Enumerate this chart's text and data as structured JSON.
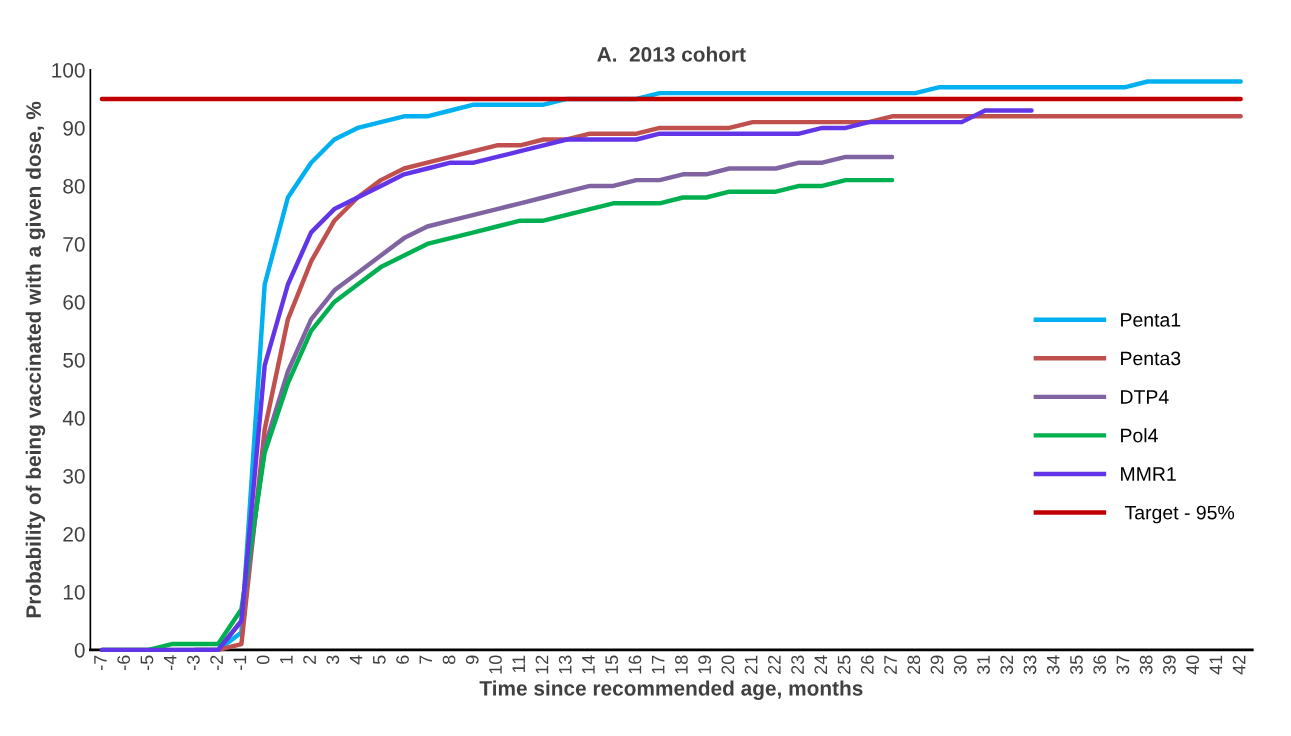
{
  "chart_data": {
    "type": "line",
    "title": "A.  2013 cohort",
    "xlabel": "Time since recommended age, months",
    "ylabel": "Probability of being vaccinated with a given dose, %",
    "categories": [
      "-7",
      "-6",
      "-5",
      "-4",
      "-3",
      "-2",
      "-1",
      "0",
      "1",
      "2",
      "3",
      "4",
      "5",
      "6",
      "7",
      "8",
      "9",
      "10",
      "11",
      "12",
      "13",
      "14",
      "15",
      "16",
      "17",
      "18",
      "19",
      "20",
      "21",
      "22",
      "23",
      "24",
      "25",
      "26",
      "27",
      "28",
      "29",
      "30",
      "31",
      "32",
      "33",
      "34",
      "35",
      "36",
      "37",
      "38",
      "39",
      "40",
      "41",
      "42"
    ],
    "ylim": [
      0,
      100
    ],
    "yticks": [
      0,
      10,
      20,
      30,
      40,
      50,
      60,
      70,
      80,
      90,
      100
    ],
    "grid": false,
    "legend": "right",
    "marker": "none",
    "line_style": "solid",
    "series": [
      {
        "name": "Penta1",
        "color": "#00b0f0",
        "values": [
          null,
          null,
          null,
          null,
          0,
          0,
          3,
          63,
          78,
          84,
          88,
          90,
          91,
          92,
          92,
          93,
          94,
          94,
          94,
          94,
          95,
          95,
          95,
          95,
          96,
          96,
          96,
          96,
          96,
          96,
          96,
          96,
          96,
          96,
          96,
          96,
          97,
          97,
          97,
          97,
          97,
          97,
          97,
          97,
          97,
          98,
          98,
          98,
          98,
          98
        ]
      },
      {
        "name": "Penta3",
        "color": "#c0504d",
        "values": [
          null,
          null,
          null,
          null,
          0,
          0,
          1,
          38,
          57,
          67,
          74,
          78,
          81,
          83,
          84,
          85,
          86,
          87,
          87,
          88,
          88,
          89,
          89,
          89,
          90,
          90,
          90,
          90,
          91,
          91,
          91,
          91,
          91,
          91,
          92,
          92,
          92,
          92,
          92,
          92,
          92,
          92,
          92,
          92,
          92,
          92,
          92,
          92,
          92,
          92
        ]
      },
      {
        "name": "DTP4",
        "color": "#8064a2",
        "values": [
          0,
          0,
          0,
          0,
          0,
          0,
          5,
          35,
          48,
          57,
          62,
          65,
          68,
          71,
          73,
          74,
          75,
          76,
          77,
          78,
          79,
          80,
          80,
          81,
          81,
          82,
          82,
          83,
          83,
          83,
          84,
          84,
          85,
          85,
          85,
          null,
          null,
          null,
          null,
          null,
          null,
          null,
          null,
          null,
          null,
          null,
          null,
          null,
          null,
          null
        ]
      },
      {
        "name": "Pol4",
        "color": "#00b050",
        "values": [
          0,
          0,
          0,
          1,
          1,
          1,
          7,
          34,
          46,
          55,
          60,
          63,
          66,
          68,
          70,
          71,
          72,
          73,
          74,
          74,
          75,
          76,
          77,
          77,
          77,
          78,
          78,
          79,
          79,
          79,
          80,
          80,
          81,
          81,
          81,
          null,
          null,
          null,
          null,
          null,
          null,
          null,
          null,
          null,
          null,
          null,
          null,
          null,
          null,
          null
        ]
      },
      {
        "name": "MMR1",
        "color": "#6236e8",
        "values": [
          0,
          0,
          0,
          0,
          0,
          0,
          5,
          49,
          63,
          72,
          76,
          78,
          80,
          82,
          83,
          84,
          84,
          85,
          86,
          87,
          88,
          88,
          88,
          88,
          89,
          89,
          89,
          89,
          89,
          89,
          89,
          90,
          90,
          91,
          91,
          91,
          91,
          91,
          93,
          93,
          93,
          null,
          null,
          null,
          null,
          null,
          null,
          null,
          null,
          null
        ]
      },
      {
        "name": " Target - 95%",
        "color": "#c00000",
        "values": [
          95,
          95,
          95,
          95,
          95,
          95,
          95,
          95,
          95,
          95,
          95,
          95,
          95,
          95,
          95,
          95,
          95,
          95,
          95,
          95,
          95,
          95,
          95,
          95,
          95,
          95,
          95,
          95,
          95,
          95,
          95,
          95,
          95,
          95,
          95,
          95,
          95,
          95,
          95,
          95,
          95,
          95,
          95,
          95,
          95,
          95,
          95,
          95,
          95,
          95
        ]
      }
    ]
  }
}
